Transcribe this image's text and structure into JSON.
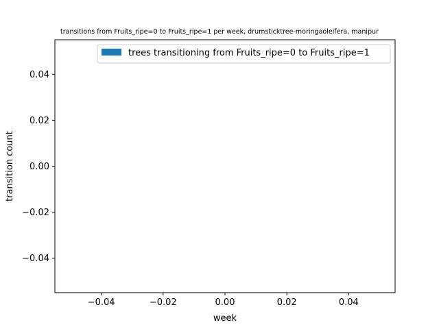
{
  "chart_data": {
    "type": "bar",
    "title": "transitions from Fruits_ripe=0 to Fruits_ripe=1 per week, drumsticktree-moringaoleifera, manipur",
    "xlabel": "week",
    "ylabel": "transition count",
    "xlim": [
      -0.055,
      0.055
    ],
    "ylim": [
      -0.055,
      0.055
    ],
    "x_ticks": [
      -0.04,
      -0.02,
      0.0,
      0.02,
      0.04
    ],
    "x_tick_labels": [
      "−0.04",
      "−0.02",
      "0.00",
      "0.02",
      "0.04"
    ],
    "y_ticks": [
      -0.04,
      -0.02,
      0.0,
      0.02,
      0.04
    ],
    "y_tick_labels": [
      "−0.04",
      "−0.02",
      "0.00",
      "0.02",
      "0.04"
    ],
    "series": [
      {
        "name": "trees transitioning from Fruits_ripe=0 to Fruits_ripe=1",
        "color": "#1f77b4",
        "x": [],
        "values": []
      }
    ],
    "legend_position": "top-right",
    "grid": false
  }
}
